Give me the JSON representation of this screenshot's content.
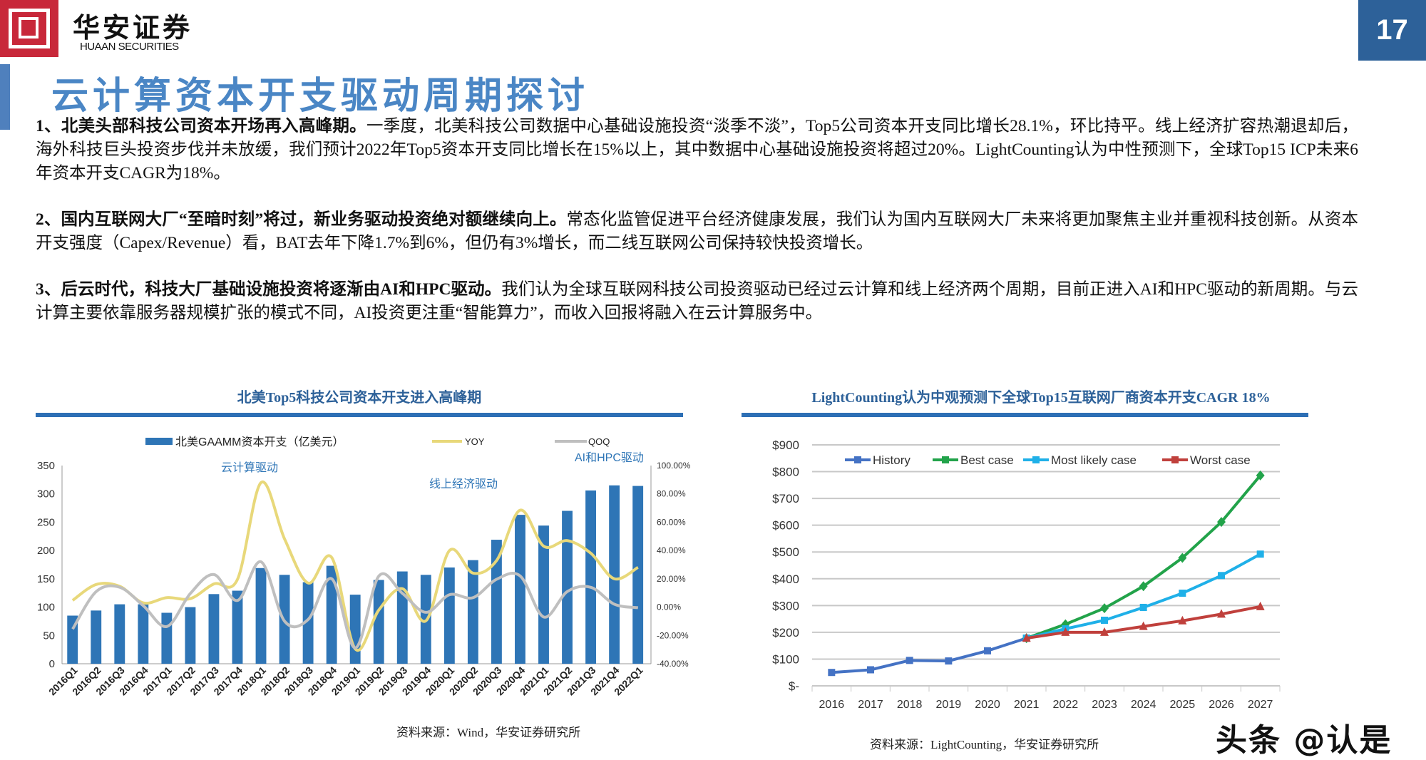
{
  "header": {
    "brand_cn": "华安证券",
    "brand_en": "HUAAN SECURITIES",
    "page_number": "17",
    "brand_color": "#c8283a",
    "accent_color": "#2d6199"
  },
  "title": "云计算资本开支驱动周期探讨",
  "paragraphs": [
    {
      "lead": "1、北美头部科技公司资本开场再入高峰期。",
      "body": "一季度，北美科技公司数据中心基础设施投资“淡季不淡”，Top5公司资本开支同比增长28.1%，环比持平。线上经济扩容热潮退却后，海外科技巨头投资步伐并未放缓，我们预计2022年Top5资本开支同比增长在15%以上，其中数据中心基础设施投资将超过20%。LightCounting认为中性预测下，全球Top15 ICP未来6年资本开支CAGR为18%。"
    },
    {
      "lead": "2、国内互联网大厂“至暗时刻”将过，新业务驱动投资绝对额继续向上。",
      "body": "常态化监管促进平台经济健康发展，我们认为国内互联网大厂未来将更加聚焦主业并重视科技创新。从资本开支强度（Capex/Revenue）看，BAT去年下降1.7%到6%，但仍有3%增长，而二线互联网公司保持较快投资增长。"
    },
    {
      "lead": "3、后云时代，科技大厂基础设施投资将逐渐由AI和HPC驱动。",
      "body": "我们认为全球互联网科技公司投资驱动已经过云计算和线上经济两个周期，目前正进入AI和HPC驱动的新周期。与云计算主要依靠服务器规模扩张的模式不同，AI投资更注重“智能算力”，而收入回报将融入在云计算服务中。"
    }
  ],
  "watermark": "头条 @认是",
  "chart_data": [
    {
      "type": "bar+line",
      "title": "北美Top5科技公司资本开支进入高峰期",
      "source": "资料来源：Wind，华安证券研究所",
      "categories": [
        "2016Q1",
        "2016Q2",
        "2016Q3",
        "2016Q4",
        "2017Q1",
        "2017Q2",
        "2017Q3",
        "2017Q4",
        "2018Q1",
        "2018Q2",
        "2018Q3",
        "2018Q4",
        "2019Q1",
        "2019Q2",
        "2019Q3",
        "2019Q4",
        "2020Q1",
        "2020Q2",
        "2020Q3",
        "2020Q4",
        "2021Q1",
        "2021Q2",
        "2021Q3",
        "2021Q4",
        "2022Q1"
      ],
      "series": [
        {
          "name": "北美GAAMM资本开支（亿美元）",
          "type": "bar",
          "axis": "left",
          "color": "#2e75b6",
          "values": [
            85,
            94,
            105,
            105,
            90,
            100,
            123,
            129,
            169,
            157,
            144,
            173,
            122,
            148,
            163,
            157,
            170,
            183,
            219,
            263,
            244,
            270,
            306,
            315,
            314
          ]
        },
        {
          "name": "YOY",
          "type": "line",
          "axis": "right",
          "color": "#e8d87a",
          "values": [
            4.8,
            16,
            14.7,
            3,
            6.7,
            6,
            16.4,
            19.7,
            88,
            48,
            17,
            35,
            -29.6,
            -2,
            13,
            -9.6,
            40,
            24,
            33,
            68.5,
            43,
            47,
            38,
            20,
            28.1
          ]
        },
        {
          "name": "QOQ",
          "type": "line",
          "axis": "right",
          "color": "#bfbfbf",
          "values": [
            -15.5,
            11,
            14,
            1,
            -13.7,
            9.7,
            23,
            4.7,
            32,
            -10,
            -8.7,
            20,
            -28.8,
            22,
            9.7,
            -3.7,
            8.8,
            6.7,
            19.7,
            22,
            -7,
            11,
            14,
            2,
            -0.4
          ]
        }
      ],
      "left_axis": {
        "range": [
          0,
          350
        ],
        "ticks": [
          "0",
          "50",
          "100",
          "150",
          "200",
          "250",
          "300",
          "350"
        ]
      },
      "right_axis": {
        "range": [
          -40,
          100
        ],
        "ticks": [
          "-40.00%",
          "-20.00%",
          "0.00%",
          "20.00%",
          "40.00%",
          "60.00%",
          "80.00%",
          "100.00%"
        ]
      },
      "annotations": [
        "云计算驱动",
        "线上经济驱动",
        "AI和HPC驱动"
      ],
      "annotation_color": "#2e75b6",
      "legend": "top"
    },
    {
      "type": "line",
      "title": "LightCounting认为中观预测下全球Top15互联网厂商资本开支CAGR 18%",
      "source": "资料来源：LightCounting，华安证券研究所",
      "x": [
        "2016",
        "2017",
        "2018",
        "2019",
        "2020",
        "2021",
        "2022",
        "2023",
        "2024",
        "2025",
        "2026",
        "2027"
      ],
      "y_axis": {
        "range": [
          0,
          900
        ],
        "ticks": [
          "$-",
          "$100",
          "$200",
          "$300",
          "$400",
          "$500",
          "$600",
          "$700",
          "$800",
          "$900"
        ]
      },
      "grid": true,
      "legend": "top",
      "series": [
        {
          "name": "History",
          "color": "#4472c4",
          "marker": "square",
          "values": [
            50,
            60,
            95,
            93,
            131,
            178,
            null,
            null,
            null,
            null,
            null,
            null
          ]
        },
        {
          "name": "Best case",
          "color": "#22a34a",
          "marker": "diamond",
          "values": [
            null,
            null,
            null,
            null,
            null,
            178,
            230,
            290,
            372,
            478,
            612,
            786
          ]
        },
        {
          "name": "Most likely case",
          "color": "#1fb0e8",
          "marker": "square",
          "values": [
            null,
            null,
            null,
            null,
            null,
            178,
            213,
            245,
            293,
            346,
            412,
            492
          ]
        },
        {
          "name": "Worst case",
          "color": "#c0403c",
          "marker": "triangle",
          "values": [
            null,
            null,
            null,
            null,
            null,
            178,
            200,
            200,
            222,
            243,
            268,
            296
          ]
        }
      ]
    }
  ]
}
